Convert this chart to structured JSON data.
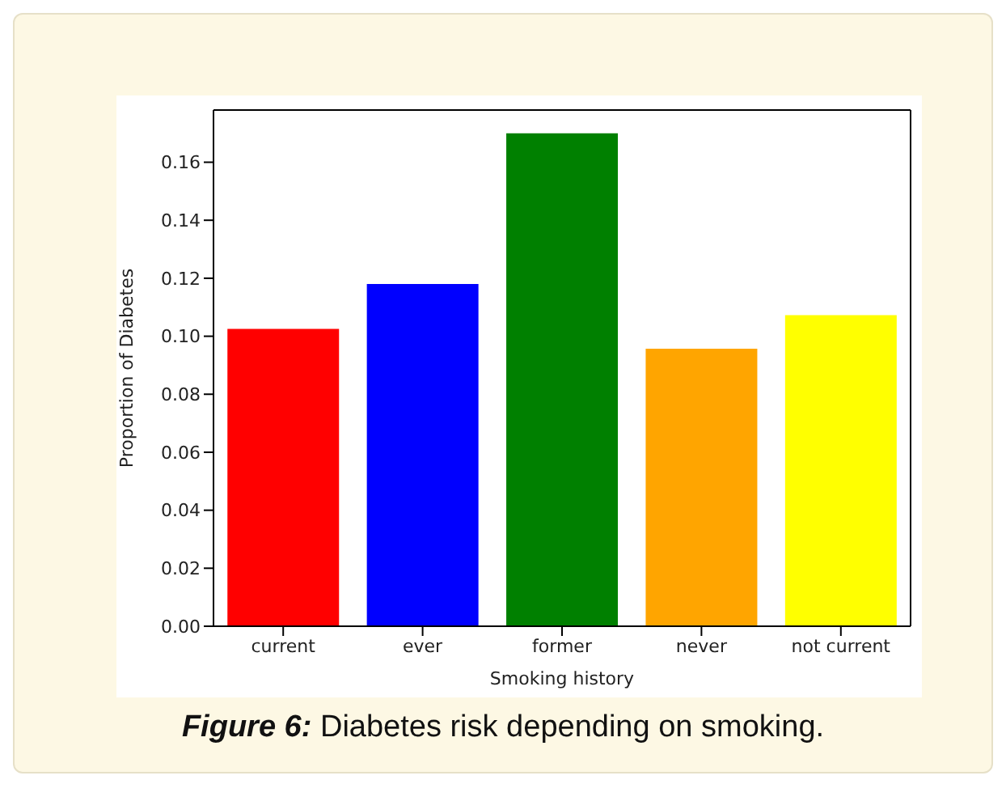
{
  "chart_data": {
    "type": "bar",
    "categories": [
      "current",
      "ever",
      "former",
      "never",
      "not current"
    ],
    "values": [
      0.1025,
      0.118,
      0.17,
      0.0957,
      0.1073
    ],
    "colors": [
      "#ff0000",
      "#0000ff",
      "#008000",
      "#ffa500",
      "#ffff00"
    ],
    "xlabel": "Smoking history",
    "ylabel": "Proportion of Diabetes",
    "ylim": [
      0,
      0.178
    ],
    "yticks": [
      {
        "value": 0,
        "label": "0.00"
      },
      0.02,
      0.04,
      0.06,
      0.08,
      {
        "value": 0.1,
        "label": "0.10"
      },
      0.12,
      0.14,
      0.16
    ],
    "grid": false,
    "legend": false,
    "annotations": [
      "Figure 6: Diabetes risk depending on smoking."
    ]
  }
}
